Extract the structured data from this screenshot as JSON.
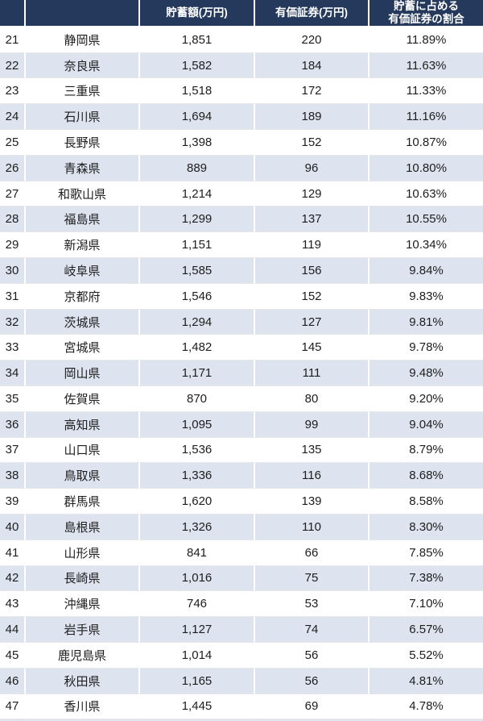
{
  "header": {
    "col_rank": "",
    "col_pref": "",
    "col_savings": "貯蓄額(万円)",
    "col_securities": "有価証券(万円)",
    "col_ratio": "貯蓄に占める\n有価証券の割合"
  },
  "colors": {
    "header_bg": "#24395b",
    "header_text": "#ffffff",
    "row_bg": "#ffffff",
    "row_alt_bg": "#dde4ef",
    "body_text": "#1d1d1d",
    "grid_line": "#e7e7e7",
    "cell_separator": "#ffffff"
  },
  "chart_data": {
    "type": "table",
    "columns": [
      "",
      "",
      "貯蓄額(万円)",
      "有価証券(万円)",
      "貯蓄に占める有価証券の割合"
    ],
    "rows": [
      [
        "21",
        "静岡県",
        "1,851",
        "220",
        "11.89%"
      ],
      [
        "22",
        "奈良県",
        "1,582",
        "184",
        "11.63%"
      ],
      [
        "23",
        "三重県",
        "1,518",
        "172",
        "11.33%"
      ],
      [
        "24",
        "石川県",
        "1,694",
        "189",
        "11.16%"
      ],
      [
        "25",
        "長野県",
        "1,398",
        "152",
        "10.87%"
      ],
      [
        "26",
        "青森県",
        "889",
        "96",
        "10.80%"
      ],
      [
        "27",
        "和歌山県",
        "1,214",
        "129",
        "10.63%"
      ],
      [
        "28",
        "福島県",
        "1,299",
        "137",
        "10.55%"
      ],
      [
        "29",
        "新潟県",
        "1,151",
        "119",
        "10.34%"
      ],
      [
        "30",
        "岐阜県",
        "1,585",
        "156",
        "9.84%"
      ],
      [
        "31",
        "京都府",
        "1,546",
        "152",
        "9.83%"
      ],
      [
        "32",
        "茨城県",
        "1,294",
        "127",
        "9.81%"
      ],
      [
        "33",
        "宮城県",
        "1,482",
        "145",
        "9.78%"
      ],
      [
        "34",
        "岡山県",
        "1,171",
        "111",
        "9.48%"
      ],
      [
        "35",
        "佐賀県",
        "870",
        "80",
        "9.20%"
      ],
      [
        "36",
        "高知県",
        "1,095",
        "99",
        "9.04%"
      ],
      [
        "37",
        "山口県",
        "1,536",
        "135",
        "8.79%"
      ],
      [
        "38",
        "鳥取県",
        "1,336",
        "116",
        "8.68%"
      ],
      [
        "39",
        "群馬県",
        "1,620",
        "139",
        "8.58%"
      ],
      [
        "40",
        "島根県",
        "1,326",
        "110",
        "8.30%"
      ],
      [
        "41",
        "山形県",
        "841",
        "66",
        "7.85%"
      ],
      [
        "42",
        "長崎県",
        "1,016",
        "75",
        "7.38%"
      ],
      [
        "43",
        "沖縄県",
        "746",
        "53",
        "7.10%"
      ],
      [
        "44",
        "岩手県",
        "1,127",
        "74",
        "6.57%"
      ],
      [
        "45",
        "鹿児島県",
        "1,014",
        "56",
        "5.52%"
      ],
      [
        "46",
        "秋田県",
        "1,165",
        "56",
        "4.81%"
      ],
      [
        "47",
        "香川県",
        "1,445",
        "69",
        "4.78%"
      ]
    ]
  }
}
